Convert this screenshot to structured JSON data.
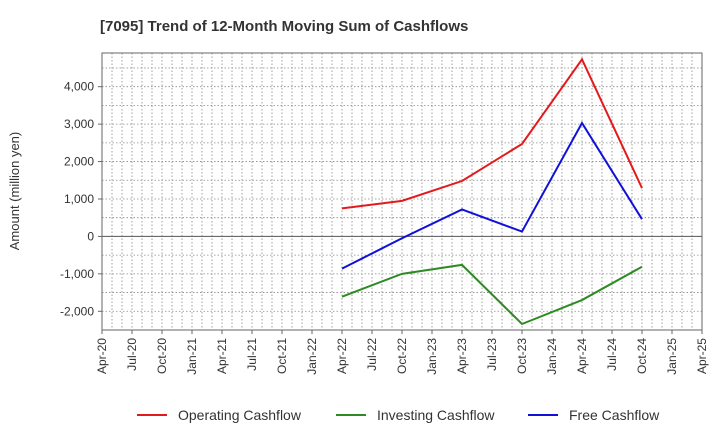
{
  "chart_data": {
    "type": "line",
    "title": "[7095]  Trend of 12-Month Moving Sum of Cashflows",
    "xlabel": "",
    "ylabel": "Amount (million yen)",
    "x_tick_labels": [
      "Apr-20",
      "Jul-20",
      "Oct-20",
      "Jan-21",
      "Apr-21",
      "Jul-21",
      "Oct-21",
      "Jan-22",
      "Apr-22",
      "Jul-22",
      "Oct-22",
      "Jan-23",
      "Apr-23",
      "Jul-23",
      "Oct-23",
      "Jan-24",
      "Apr-24",
      "Jul-24",
      "Oct-24",
      "Jan-25",
      "Apr-25"
    ],
    "y_ticks": [
      -2000,
      -1000,
      0,
      1000,
      2000,
      3000,
      4000
    ],
    "y_tick_labels": [
      "-2,000",
      "-1,000",
      "0",
      "1,000",
      "2,000",
      "3,000",
      "4,000"
    ],
    "ylim": [
      -2500,
      4900
    ],
    "grid": true,
    "legend_position": "bottom",
    "series": [
      {
        "name": "Operating Cashflow",
        "color": "#e31a1c",
        "x": [
          "Apr-22",
          "Oct-22",
          "Apr-23",
          "Oct-23",
          "Apr-24",
          "Oct-24"
        ],
        "values": [
          750,
          950,
          1480,
          2470,
          4730,
          1290
        ]
      },
      {
        "name": "Investing Cashflow",
        "color": "#2e8b23",
        "x": [
          "Apr-22",
          "Oct-22",
          "Apr-23",
          "Oct-23",
          "Apr-24",
          "Oct-24"
        ],
        "values": [
          -1610,
          -1000,
          -760,
          -2340,
          -1700,
          -810
        ]
      },
      {
        "name": "Free Cashflow",
        "color": "#1010d8",
        "x": [
          "Apr-22",
          "Oct-22",
          "Apr-23",
          "Oct-23",
          "Apr-24",
          "Oct-24"
        ],
        "values": [
          -860,
          -50,
          720,
          130,
          3030,
          460
        ]
      }
    ]
  }
}
